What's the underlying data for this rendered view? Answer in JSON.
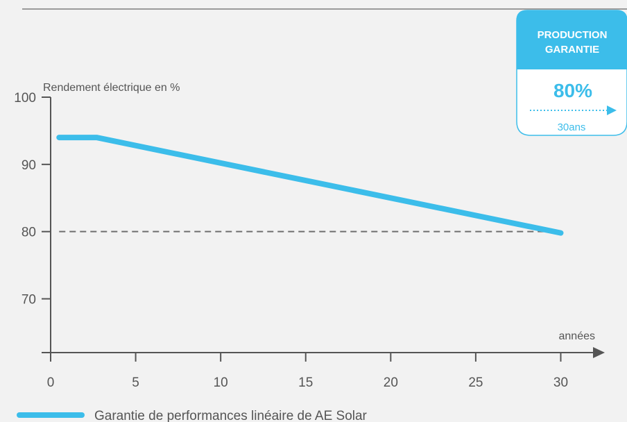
{
  "badge": {
    "line1": "PRODUCTION",
    "line2": "GARANTIE",
    "value": "80%",
    "duration": "30ans"
  },
  "colors": {
    "background": "#f2f2f2",
    "accent": "#3cbdea",
    "axis": "#555555",
    "reference_line": "#6e6e6e",
    "top_rule": "#9a9a9a"
  },
  "chart_data": {
    "type": "line",
    "ylabel": "Rendement électrique en %",
    "xlabel": "années",
    "x_ticks": [
      0,
      5,
      10,
      15,
      20,
      25,
      30
    ],
    "y_ticks": [
      70,
      80,
      90,
      100
    ],
    "xlim": [
      0,
      31
    ],
    "ylim": [
      62,
      100
    ],
    "grid": false,
    "legend_position": "bottom-left",
    "series": [
      {
        "name": "Garantie de performances linéaire de AE Solar",
        "x": [
          0.5,
          2.7,
          30
        ],
        "y": [
          94,
          94,
          79.8
        ]
      }
    ],
    "reference_line": {
      "x": [
        0.5,
        30
      ],
      "y": [
        80,
        80
      ]
    }
  }
}
